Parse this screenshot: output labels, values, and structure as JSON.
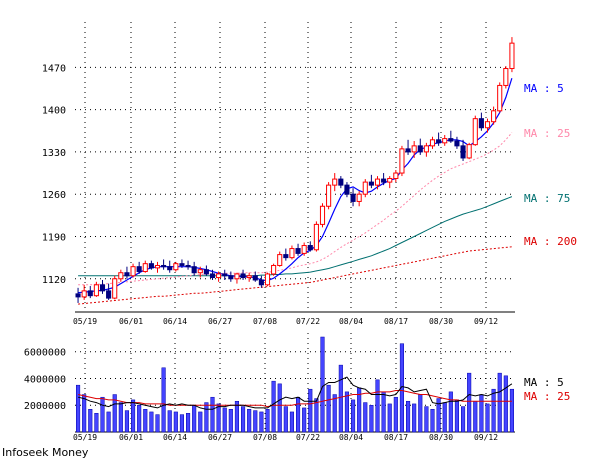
{
  "credit": "Infoseek Money",
  "chart_data": [
    {
      "type": "candlestick",
      "title": "",
      "x_labels": [
        "05/19",
        "06/01",
        "06/14",
        "06/27",
        "07/08",
        "07/22",
        "08/04",
        "08/17",
        "08/30",
        "09/12"
      ],
      "ylim": [
        1065,
        1545
      ],
      "y_ticks": [
        1120,
        1190,
        1260,
        1330,
        1400,
        1470
      ],
      "grid": true,
      "colors": {
        "up": "#ff0000",
        "down": "#000080",
        "ma5": "#0000ff",
        "ma25": "#ff88aa",
        "ma75": "#007070",
        "ma200": "#dd0000"
      },
      "ohlc": [
        [
          1095,
          1105,
          1080,
          1090
        ],
        [
          1090,
          1110,
          1085,
          1100
        ],
        [
          1100,
          1108,
          1088,
          1092
        ],
        [
          1092,
          1115,
          1090,
          1110
        ],
        [
          1110,
          1118,
          1095,
          1100
        ],
        [
          1100,
          1112,
          1085,
          1088
        ],
        [
          1088,
          1125,
          1086,
          1120
        ],
        [
          1120,
          1135,
          1115,
          1130
        ],
        [
          1130,
          1140,
          1120,
          1125
        ],
        [
          1125,
          1145,
          1122,
          1140
        ],
        [
          1140,
          1148,
          1128,
          1132
        ],
        [
          1132,
          1150,
          1130,
          1145
        ],
        [
          1145,
          1150,
          1135,
          1138
        ],
        [
          1138,
          1148,
          1130,
          1142
        ],
        [
          1142,
          1152,
          1135,
          1140
        ],
        [
          1140,
          1150,
          1130,
          1135
        ],
        [
          1135,
          1148,
          1132,
          1145
        ],
        [
          1145,
          1152,
          1138,
          1142
        ],
        [
          1142,
          1150,
          1135,
          1140
        ],
        [
          1140,
          1148,
          1125,
          1130
        ],
        [
          1130,
          1140,
          1122,
          1135
        ],
        [
          1135,
          1142,
          1125,
          1128
        ],
        [
          1128,
          1135,
          1118,
          1122
        ],
        [
          1122,
          1132,
          1115,
          1128
        ],
        [
          1128,
          1135,
          1118,
          1125
        ],
        [
          1125,
          1132,
          1115,
          1120
        ],
        [
          1120,
          1130,
          1112,
          1128
        ],
        [
          1128,
          1135,
          1118,
          1122
        ],
        [
          1122,
          1130,
          1115,
          1125
        ],
        [
          1125,
          1132,
          1115,
          1118
        ],
        [
          1118,
          1125,
          1105,
          1110
        ],
        [
          1110,
          1130,
          1108,
          1128
        ],
        [
          1128,
          1145,
          1125,
          1142
        ],
        [
          1142,
          1165,
          1140,
          1160
        ],
        [
          1160,
          1170,
          1150,
          1155
        ],
        [
          1155,
          1175,
          1152,
          1170
        ],
        [
          1170,
          1178,
          1158,
          1162
        ],
        [
          1162,
          1180,
          1158,
          1175
        ],
        [
          1175,
          1182,
          1165,
          1168
        ],
        [
          1168,
          1215,
          1165,
          1210
        ],
        [
          1210,
          1245,
          1205,
          1240
        ],
        [
          1240,
          1280,
          1235,
          1275
        ],
        [
          1275,
          1295,
          1265,
          1285
        ],
        [
          1285,
          1290,
          1270,
          1275
        ],
        [
          1275,
          1280,
          1255,
          1260
        ],
        [
          1260,
          1270,
          1240,
          1248
        ],
        [
          1248,
          1265,
          1240,
          1260
        ],
        [
          1260,
          1285,
          1255,
          1280
        ],
        [
          1280,
          1292,
          1270,
          1275
        ],
        [
          1275,
          1290,
          1268,
          1285
        ],
        [
          1285,
          1295,
          1275,
          1280
        ],
        [
          1280,
          1290,
          1270,
          1286
        ],
        [
          1286,
          1300,
          1280,
          1295
        ],
        [
          1295,
          1340,
          1290,
          1335
        ],
        [
          1335,
          1350,
          1325,
          1330
        ],
        [
          1330,
          1348,
          1320,
          1340
        ],
        [
          1340,
          1352,
          1325,
          1330
        ],
        [
          1330,
          1345,
          1322,
          1340
        ],
        [
          1340,
          1355,
          1335,
          1350
        ],
        [
          1350,
          1362,
          1340,
          1345
        ],
        [
          1345,
          1358,
          1340,
          1352
        ],
        [
          1352,
          1365,
          1345,
          1348
        ],
        [
          1348,
          1355,
          1335,
          1340
        ],
        [
          1340,
          1350,
          1315,
          1320
        ],
        [
          1320,
          1345,
          1318,
          1342
        ],
        [
          1342,
          1390,
          1340,
          1385
        ],
        [
          1385,
          1395,
          1365,
          1370
        ],
        [
          1370,
          1385,
          1362,
          1380
        ],
        [
          1380,
          1405,
          1375,
          1398
        ],
        [
          1398,
          1445,
          1395,
          1440
        ],
        [
          1440,
          1472,
          1435,
          1468
        ],
        [
          1468,
          1520,
          1462,
          1510
        ]
      ],
      "ma5": [
        1097,
        1098,
        1099,
        1100,
        1101,
        1103,
        1106,
        1112,
        1118,
        1124,
        1130,
        1135,
        1138,
        1140,
        1140,
        1140,
        1140,
        1140,
        1140,
        1139,
        1137,
        1135,
        1132,
        1129,
        1127,
        1125,
        1124,
        1124,
        1123,
        1122,
        1118,
        1117,
        1121,
        1128,
        1136,
        1145,
        1155,
        1163,
        1167,
        1175,
        1190,
        1212,
        1235,
        1256,
        1269,
        1272,
        1266,
        1262,
        1265,
        1272,
        1278,
        1283,
        1286,
        1300,
        1311,
        1325,
        1334,
        1338,
        1343,
        1345,
        1348,
        1350,
        1350,
        1347,
        1340,
        1347,
        1355,
        1365,
        1378,
        1395,
        1420,
        1452
      ],
      "ma25": [
        1110,
        1110,
        1110,
        1111,
        1111,
        1112,
        1113,
        1114,
        1115,
        1116,
        1117,
        1118,
        1119,
        1120,
        1121,
        1122,
        1123,
        1124,
        1125,
        1126,
        1127,
        1127,
        1128,
        1128,
        1129,
        1129,
        1129,
        1130,
        1130,
        1130,
        1130,
        1131,
        1132,
        1134,
        1136,
        1138,
        1141,
        1143,
        1145,
        1148,
        1152,
        1158,
        1165,
        1172,
        1178,
        1184,
        1190,
        1196,
        1203,
        1210,
        1217,
        1225,
        1232,
        1240,
        1249,
        1258,
        1267,
        1275,
        1283,
        1290,
        1296,
        1302,
        1306,
        1310,
        1314,
        1318,
        1322,
        1327,
        1333,
        1340,
        1350,
        1362
      ],
      "ma75": [
        1125,
        1125,
        1125,
        1125,
        1125,
        1125,
        1125,
        1125,
        1125,
        1125,
        1125,
        1125,
        1125,
        1125,
        1125,
        1125,
        1125,
        1125,
        1125,
        1125,
        1125,
        1125,
        1125,
        1125,
        1125,
        1125,
        1125,
        1125,
        1125,
        1125,
        1126,
        1126,
        1127,
        1127,
        1128,
        1128,
        1129,
        1130,
        1131,
        1133,
        1135,
        1137,
        1140,
        1143,
        1146,
        1149,
        1152,
        1155,
        1158,
        1162,
        1166,
        1170,
        1175,
        1180,
        1185,
        1190,
        1195,
        1200,
        1205,
        1210,
        1215,
        1219,
        1223,
        1227,
        1230,
        1233,
        1236,
        1240,
        1244,
        1248,
        1252,
        1256
      ],
      "ma200": [
        1078,
        1079,
        1080,
        1081,
        1082,
        1083,
        1084,
        1085,
        1086,
        1087,
        1088,
        1089,
        1090,
        1091,
        1091,
        1092,
        1093,
        1094,
        1095,
        1096,
        1096,
        1097,
        1098,
        1099,
        1100,
        1101,
        1102,
        1103,
        1104,
        1105,
        1106,
        1107,
        1108,
        1109,
        1110,
        1111,
        1112,
        1113,
        1114,
        1116,
        1118,
        1120,
        1122,
        1124,
        1126,
        1128,
        1130,
        1132,
        1134,
        1136,
        1138,
        1140,
        1142,
        1144,
        1146,
        1148,
        1150,
        1152,
        1154,
        1156,
        1158,
        1160,
        1162,
        1164,
        1166,
        1167,
        1168,
        1169,
        1170,
        1171,
        1172,
        1173
      ],
      "legend": [
        {
          "label": "MA : 5",
          "color": "#0000ff",
          "value_key": "ma5"
        },
        {
          "label": "MA : 25",
          "color": "#ff88aa",
          "value_key": "ma25"
        },
        {
          "label": "MA : 75",
          "color": "#007070",
          "value_key": "ma75"
        },
        {
          "label": "MA : 200",
          "color": "#dd0000",
          "value_key": "ma200"
        }
      ]
    },
    {
      "type": "bar",
      "title": "",
      "x_labels": [
        "05/19",
        "06/01",
        "06/14",
        "06/27",
        "07/08",
        "07/22",
        "08/04",
        "08/17",
        "08/30",
        "09/12"
      ],
      "ylim": [
        0,
        7400000
      ],
      "y_ticks": [
        2000000,
        4000000,
        6000000
      ],
      "y_tick_labels": [
        "2000000",
        "4000000",
        "6000000"
      ],
      "grid": true,
      "colors": {
        "bar": "#4444ff",
        "ma5": "#000000",
        "ma25": "#dd0000"
      },
      "volume": [
        3500000,
        2800000,
        1700000,
        1400000,
        2600000,
        1500000,
        2800000,
        2200000,
        1600000,
        2400000,
        2000000,
        1700000,
        1500000,
        1300000,
        4800000,
        1600000,
        1500000,
        1300000,
        1400000,
        2000000,
        1500000,
        2200000,
        2600000,
        2100000,
        1800000,
        1700000,
        2300000,
        1900000,
        1700000,
        1600000,
        1500000,
        1700000,
        3800000,
        3600000,
        1900000,
        1500000,
        2600000,
        1800000,
        3200000,
        2500000,
        7100000,
        3500000,
        2800000,
        5000000,
        3000000,
        2400000,
        3300000,
        2200000,
        2000000,
        3900000,
        3000000,
        2100000,
        2600000,
        6600000,
        2300000,
        2100000,
        2800000,
        1900000,
        1700000,
        2500000,
        2200000,
        3000000,
        2400000,
        1900000,
        4400000,
        2300000,
        2800000,
        2100000,
        3200000,
        4400000,
        4200000,
        3200000
      ],
      "ma5": [
        2600000,
        2500000,
        2300000,
        2200000,
        2000000,
        1900000,
        2100000,
        2100000,
        2200000,
        2200000,
        2100000,
        2000000,
        1900000,
        1800000,
        2000000,
        2100000,
        2000000,
        2100000,
        2000000,
        2000000,
        1800000,
        1700000,
        1700000,
        1900000,
        1900000,
        2000000,
        2000000,
        2000000,
        1900000,
        1800000,
        1800000,
        1800000,
        2100000,
        2400000,
        2600000,
        2500000,
        2600000,
        2300000,
        2300000,
        2300000,
        3400000,
        3700000,
        3700000,
        3900000,
        4100000,
        3500000,
        3300000,
        3200000,
        2800000,
        2800000,
        2800000,
        2700000,
        2800000,
        3400000,
        3300000,
        3000000,
        3100000,
        3200000,
        2200000,
        2100000,
        2200000,
        2300000,
        2300000,
        2400000,
        2800000,
        2700000,
        2800000,
        2700000,
        2900000,
        3000000,
        3300000,
        3600000
      ],
      "ma25": [
        2800000,
        2700000,
        2600000,
        2500000,
        2500000,
        2400000,
        2400000,
        2300000,
        2200000,
        2200000,
        2200000,
        2100000,
        2100000,
        2100000,
        2100000,
        2000000,
        2000000,
        2000000,
        2000000,
        2000000,
        2000000,
        2000000,
        2000000,
        2000000,
        2000000,
        2000000,
        2000000,
        2000000,
        2000000,
        2000000,
        2000000,
        1900000,
        2000000,
        2000000,
        2000000,
        2000000,
        2100000,
        2100000,
        2100000,
        2200000,
        2300000,
        2400000,
        2500000,
        2600000,
        2700000,
        2800000,
        2800000,
        2900000,
        2900000,
        3000000,
        3000000,
        3000000,
        3100000,
        3100000,
        3000000,
        2900000,
        2800000,
        2800000,
        2700000,
        2600000,
        2500000,
        2400000,
        2400000,
        2300000,
        2300000,
        2300000,
        2300000,
        2300000,
        2300000,
        2300000,
        2300000,
        2300000
      ],
      "legend": [
        {
          "label": "MA : 5",
          "color": "#000000",
          "value_key": "ma5"
        },
        {
          "label": "MA : 25",
          "color": "#dd0000",
          "value_key": "ma25"
        }
      ]
    }
  ]
}
